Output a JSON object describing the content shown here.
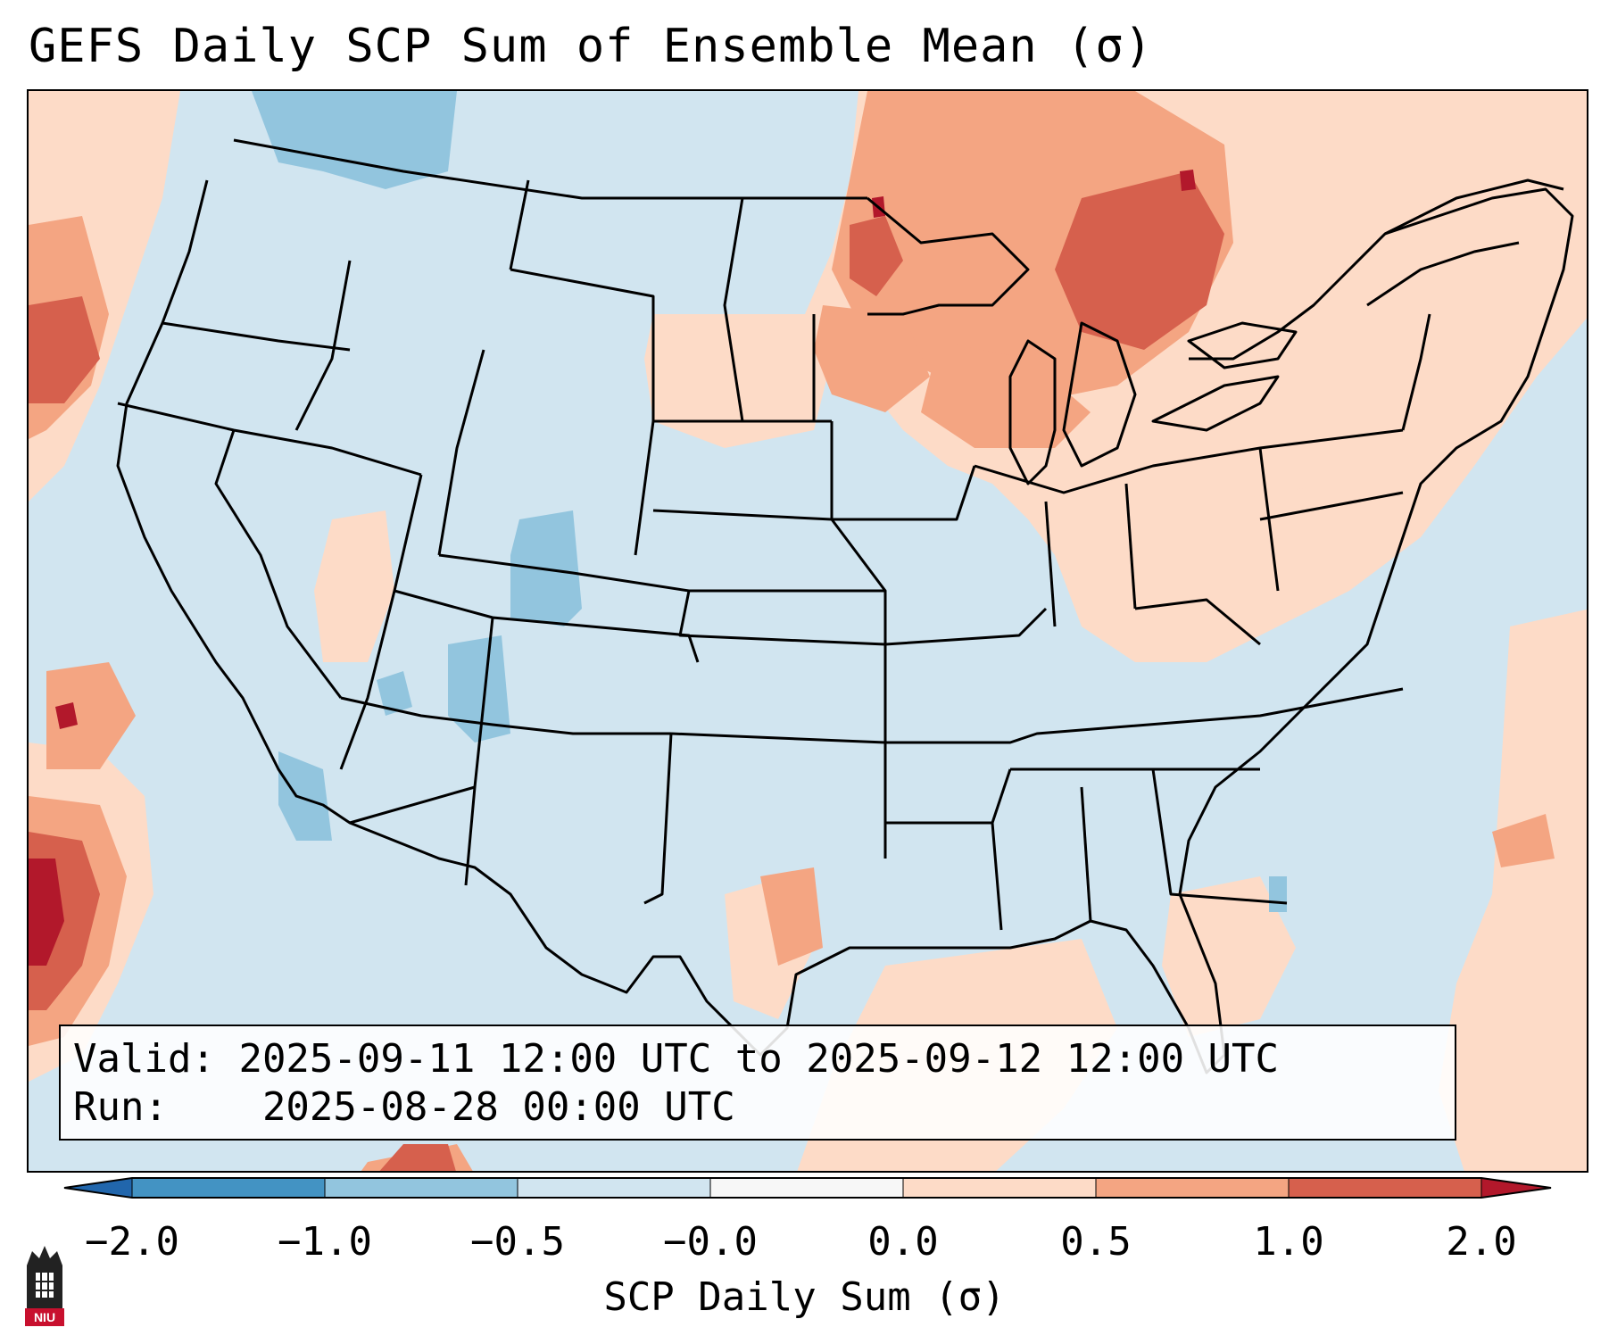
{
  "title": "GEFS Daily SCP Sum of Ensemble Mean (σ)",
  "map": {
    "region": "Continental United States",
    "variable": "SCP Daily Sum",
    "background_color": "#d1e5f0",
    "anomaly_areas": [
      {
        "region": "Upper Midwest / Great Lakes / Ontario",
        "level": "0.5 to 1.0",
        "color": "#f4a582"
      },
      {
        "region": "Northern Ontario core",
        "level": "1.0 to 2.0",
        "color": "#d6604d"
      },
      {
        "region": "Pacific off California",
        "level": "1.0 to 2.0",
        "color": "#d6604d"
      },
      {
        "region": "Colorado Rockies",
        "level": "-1.0 to -0.5",
        "color": "#92c5de"
      },
      {
        "region": "Southeast Texas coast",
        "level": "0.5 to 1.0",
        "color": "#f4a582"
      }
    ]
  },
  "info": {
    "valid_label": "Valid:",
    "valid_value": "2025-09-11 12:00 UTC to 2025-09-12 12:00 UTC",
    "run_label": "Run:",
    "run_value": "2025-08-28 00:00 UTC"
  },
  "colorbar": {
    "label": "SCP Daily Sum (σ)",
    "ticks": [
      "−2.0",
      "−1.0",
      "−0.5",
      "−0.0",
      "0.0",
      "0.5",
      "1.0",
      "2.0"
    ],
    "colors": [
      "#4393c3",
      "#92c5de",
      "#d1e5f0",
      "#f7f7f7",
      "#fddbc7",
      "#f4a582",
      "#d6604d"
    ],
    "extend_low_color": "#2166ac",
    "extend_high_color": "#b2182b"
  },
  "logo": {
    "text": "NIU",
    "color": "#c8102e"
  }
}
